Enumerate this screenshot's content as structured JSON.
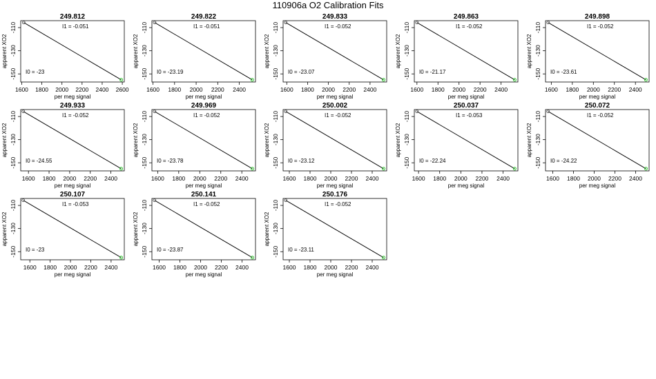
{
  "title": "110906a   O2 Calibration Fits",
  "chart_data": [
    {
      "type": "line",
      "title": "249.812",
      "xlabel": "per meg signal",
      "ylabel": "apparent XO2",
      "xticks": [
        1600,
        1800,
        2000,
        2200,
        2400,
        2600
      ],
      "yticks": [
        -110,
        -130,
        -150
      ],
      "xlim": [
        1590,
        2620
      ],
      "ylim": [
        -157,
        -104
      ],
      "I1_label": "I1 =  -0.051",
      "I0_label": "I0 =  -23",
      "x_start": 1620,
      "x_end": 2590,
      "y_start": -105.6,
      "y_end": -155.1
    },
    {
      "type": "line",
      "title": "249.822",
      "xlabel": "per meg signal",
      "ylabel": "apparent XO2",
      "xticks": [
        1600,
        1800,
        2000,
        2200,
        2400
      ],
      "yticks": [
        -110,
        -130,
        -150
      ],
      "xlim": [
        1590,
        2550
      ],
      "ylim": [
        -157,
        -104
      ],
      "I1_label": "I1 =  -0.051",
      "I0_label": "I0 =  -23.19",
      "x_start": 1615,
      "x_end": 2520,
      "y_start": -105.6,
      "y_end": -155.1
    },
    {
      "type": "line",
      "title": "249.833",
      "xlabel": "per meg signal",
      "ylabel": "apparent XO2",
      "xticks": [
        1600,
        1800,
        2000,
        2200,
        2400
      ],
      "yticks": [
        -110,
        -130,
        -150
      ],
      "xlim": [
        1565,
        2560
      ],
      "ylim": [
        -157,
        -104
      ],
      "I1_label": "I1 =  -0.052",
      "I0_label": "I0 =  -23.07",
      "x_start": 1590,
      "x_end": 2530,
      "y_start": -105.6,
      "y_end": -155.1
    },
    {
      "type": "line",
      "title": "249.863",
      "xlabel": "per meg signal",
      "ylabel": "apparent XO2",
      "xticks": [
        1600,
        1800,
        2000,
        2200,
        2400
      ],
      "yticks": [
        -110,
        -130,
        -150
      ],
      "xlim": [
        1575,
        2560
      ],
      "ylim": [
        -157,
        -104
      ],
      "I1_label": "I1 =  -0.052",
      "I0_label": "I0 =  -21.17",
      "x_start": 1600,
      "x_end": 2530,
      "y_start": -105.6,
      "y_end": -155.1
    },
    {
      "type": "line",
      "title": "249.898",
      "xlabel": "per meg signal",
      "ylabel": "apparent XO2",
      "xticks": [
        1600,
        1800,
        2000,
        2200,
        2400
      ],
      "yticks": [
        -110,
        -130,
        -150
      ],
      "xlim": [
        1545,
        2530
      ],
      "ylim": [
        -157,
        -104
      ],
      "I1_label": "I1 =  -0.052",
      "I0_label": "I0 =  -23.61",
      "x_start": 1570,
      "x_end": 2500,
      "y_start": -105.6,
      "y_end": -155.1
    },
    {
      "type": "line",
      "title": "249.933",
      "xlabel": "per meg signal",
      "ylabel": "apparent XO2",
      "xticks": [
        1600,
        1800,
        2000,
        2200,
        2400
      ],
      "yticks": [
        -110,
        -130,
        -150
      ],
      "xlim": [
        1525,
        2530
      ],
      "ylim": [
        -157,
        -104
      ],
      "I1_label": "I1 =  -0.052",
      "I0_label": "I0 =  -24.55",
      "x_start": 1550,
      "x_end": 2500,
      "y_start": -105.6,
      "y_end": -155.1
    },
    {
      "type": "line",
      "title": "249.969",
      "xlabel": "per meg signal",
      "ylabel": "apparent XO2",
      "xticks": [
        1600,
        1800,
        2000,
        2200,
        2400
      ],
      "yticks": [
        -110,
        -130,
        -150
      ],
      "xlim": [
        1545,
        2530
      ],
      "ylim": [
        -157,
        -104
      ],
      "I1_label": "I1 =  -0.052",
      "I0_label": "I0 =  -23.78",
      "x_start": 1570,
      "x_end": 2500,
      "y_start": -105.6,
      "y_end": -155.1
    },
    {
      "type": "line",
      "title": "250.002",
      "xlabel": "per meg signal",
      "ylabel": "apparent XO2",
      "xticks": [
        1600,
        1800,
        2000,
        2200,
        2400
      ],
      "yticks": [
        -110,
        -130,
        -150
      ],
      "xlim": [
        1540,
        2540
      ],
      "ylim": [
        -157,
        -104
      ],
      "I1_label": "I1 =  -0.052",
      "I0_label": "I0 =  -23.12",
      "x_start": 1565,
      "x_end": 2510,
      "y_start": -105.6,
      "y_end": -155.1
    },
    {
      "type": "line",
      "title": "250.037",
      "xlabel": "per meg signal",
      "ylabel": "apparent XO2",
      "xticks": [
        1600,
        1800,
        2000,
        2200,
        2400
      ],
      "yticks": [
        -110,
        -130,
        -150
      ],
      "xlim": [
        1560,
        2540
      ],
      "ylim": [
        -157,
        -104
      ],
      "I1_label": "I1 =  -0.053",
      "I0_label": "I0 =  -22.24",
      "x_start": 1585,
      "x_end": 2510,
      "y_start": -105.6,
      "y_end": -155.1
    },
    {
      "type": "line",
      "title": "250.072",
      "xlabel": "per meg signal",
      "ylabel": "apparent XO2",
      "xticks": [
        1600,
        1800,
        2000,
        2200,
        2400
      ],
      "yticks": [
        -110,
        -130,
        -150
      ],
      "xlim": [
        1530,
        2530
      ],
      "ylim": [
        -157,
        -104
      ],
      "I1_label": "I1 =  -0.052",
      "I0_label": "I0 =  -24.22",
      "x_start": 1555,
      "x_end": 2500,
      "y_start": -105.6,
      "y_end": -155.1
    },
    {
      "type": "line",
      "title": "250.107",
      "xlabel": "per meg signal",
      "ylabel": "apparent XO2",
      "xticks": [
        1600,
        1800,
        2000,
        2200,
        2400
      ],
      "yticks": [
        -110,
        -130,
        -150
      ],
      "xlim": [
        1510,
        2530
      ],
      "ylim": [
        -157,
        -104
      ],
      "I1_label": "I1 =  -0.053",
      "I0_label": "I0 =  -23",
      "x_start": 1535,
      "x_end": 2500,
      "y_start": -105.6,
      "y_end": -155.1
    },
    {
      "type": "line",
      "title": "250.141",
      "xlabel": "per meg signal",
      "ylabel": "apparent XO2",
      "xticks": [
        1600,
        1800,
        2000,
        2200,
        2400
      ],
      "yticks": [
        -110,
        -130,
        -150
      ],
      "xlim": [
        1530,
        2530
      ],
      "ylim": [
        -157,
        -104
      ],
      "I1_label": "I1 =  -0.052",
      "I0_label": "I0 =  -23.87",
      "x_start": 1555,
      "x_end": 2500,
      "y_start": -105.6,
      "y_end": -155.1
    },
    {
      "type": "line",
      "title": "250.176",
      "xlabel": "per meg signal",
      "ylabel": "apparent XO2",
      "xticks": [
        1600,
        1800,
        2000,
        2200,
        2400
      ],
      "yticks": [
        -110,
        -130,
        -150
      ],
      "xlim": [
        1540,
        2540
      ],
      "ylim": [
        -157,
        -104
      ],
      "I1_label": "I1 =  -0.052",
      "I0_label": "I0 =  -23.11",
      "x_start": 1565,
      "x_end": 2510,
      "y_start": -105.6,
      "y_end": -155.1
    }
  ],
  "colors": {
    "line": "#000000",
    "start_marker": "#555555",
    "end_marker": "#33cc33"
  }
}
